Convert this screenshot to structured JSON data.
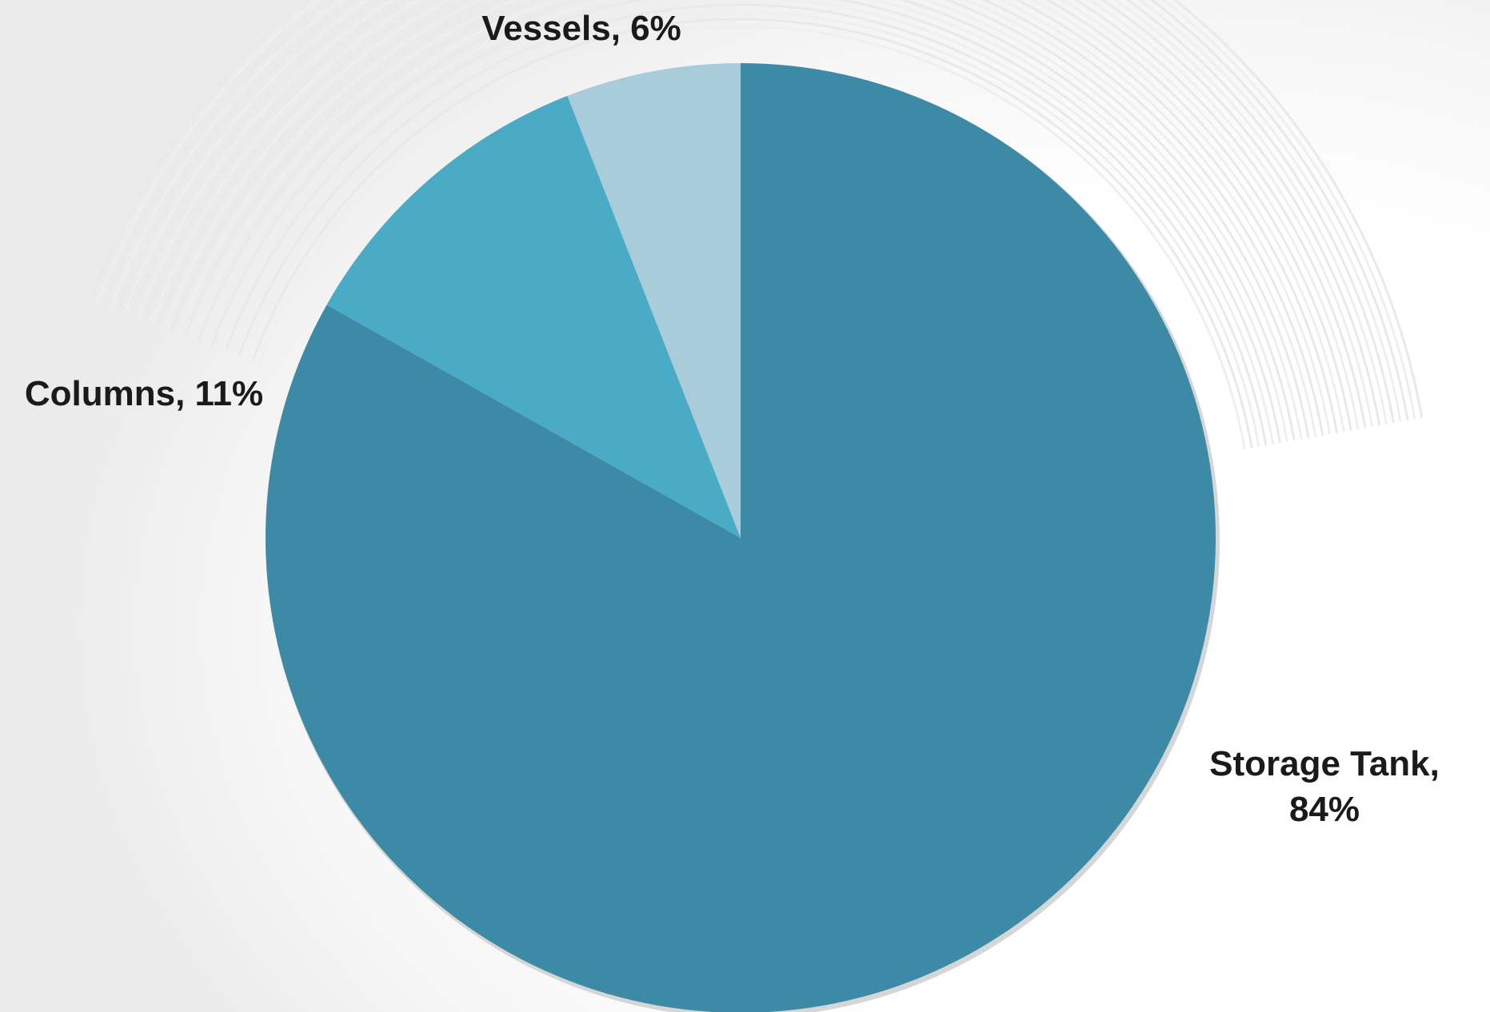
{
  "chart_data": {
    "type": "pie",
    "slices": [
      {
        "label_lines": [
          "Storage Tank,",
          "84%"
        ],
        "category": "Storage Tank",
        "value": 84,
        "color": "#3d8aa6"
      },
      {
        "label_lines": [
          "Columns, 11%"
        ],
        "category": "Columns",
        "value": 11,
        "color": "#4aabc6"
      },
      {
        "label_lines": [
          "Vessels, 6%"
        ],
        "category": "Vessels",
        "value": 6,
        "color": "#a9ccdb"
      }
    ],
    "start_angle_deg": 0,
    "direction": "clockwise",
    "legend": "none",
    "background_texture": "#f2f2f2"
  }
}
